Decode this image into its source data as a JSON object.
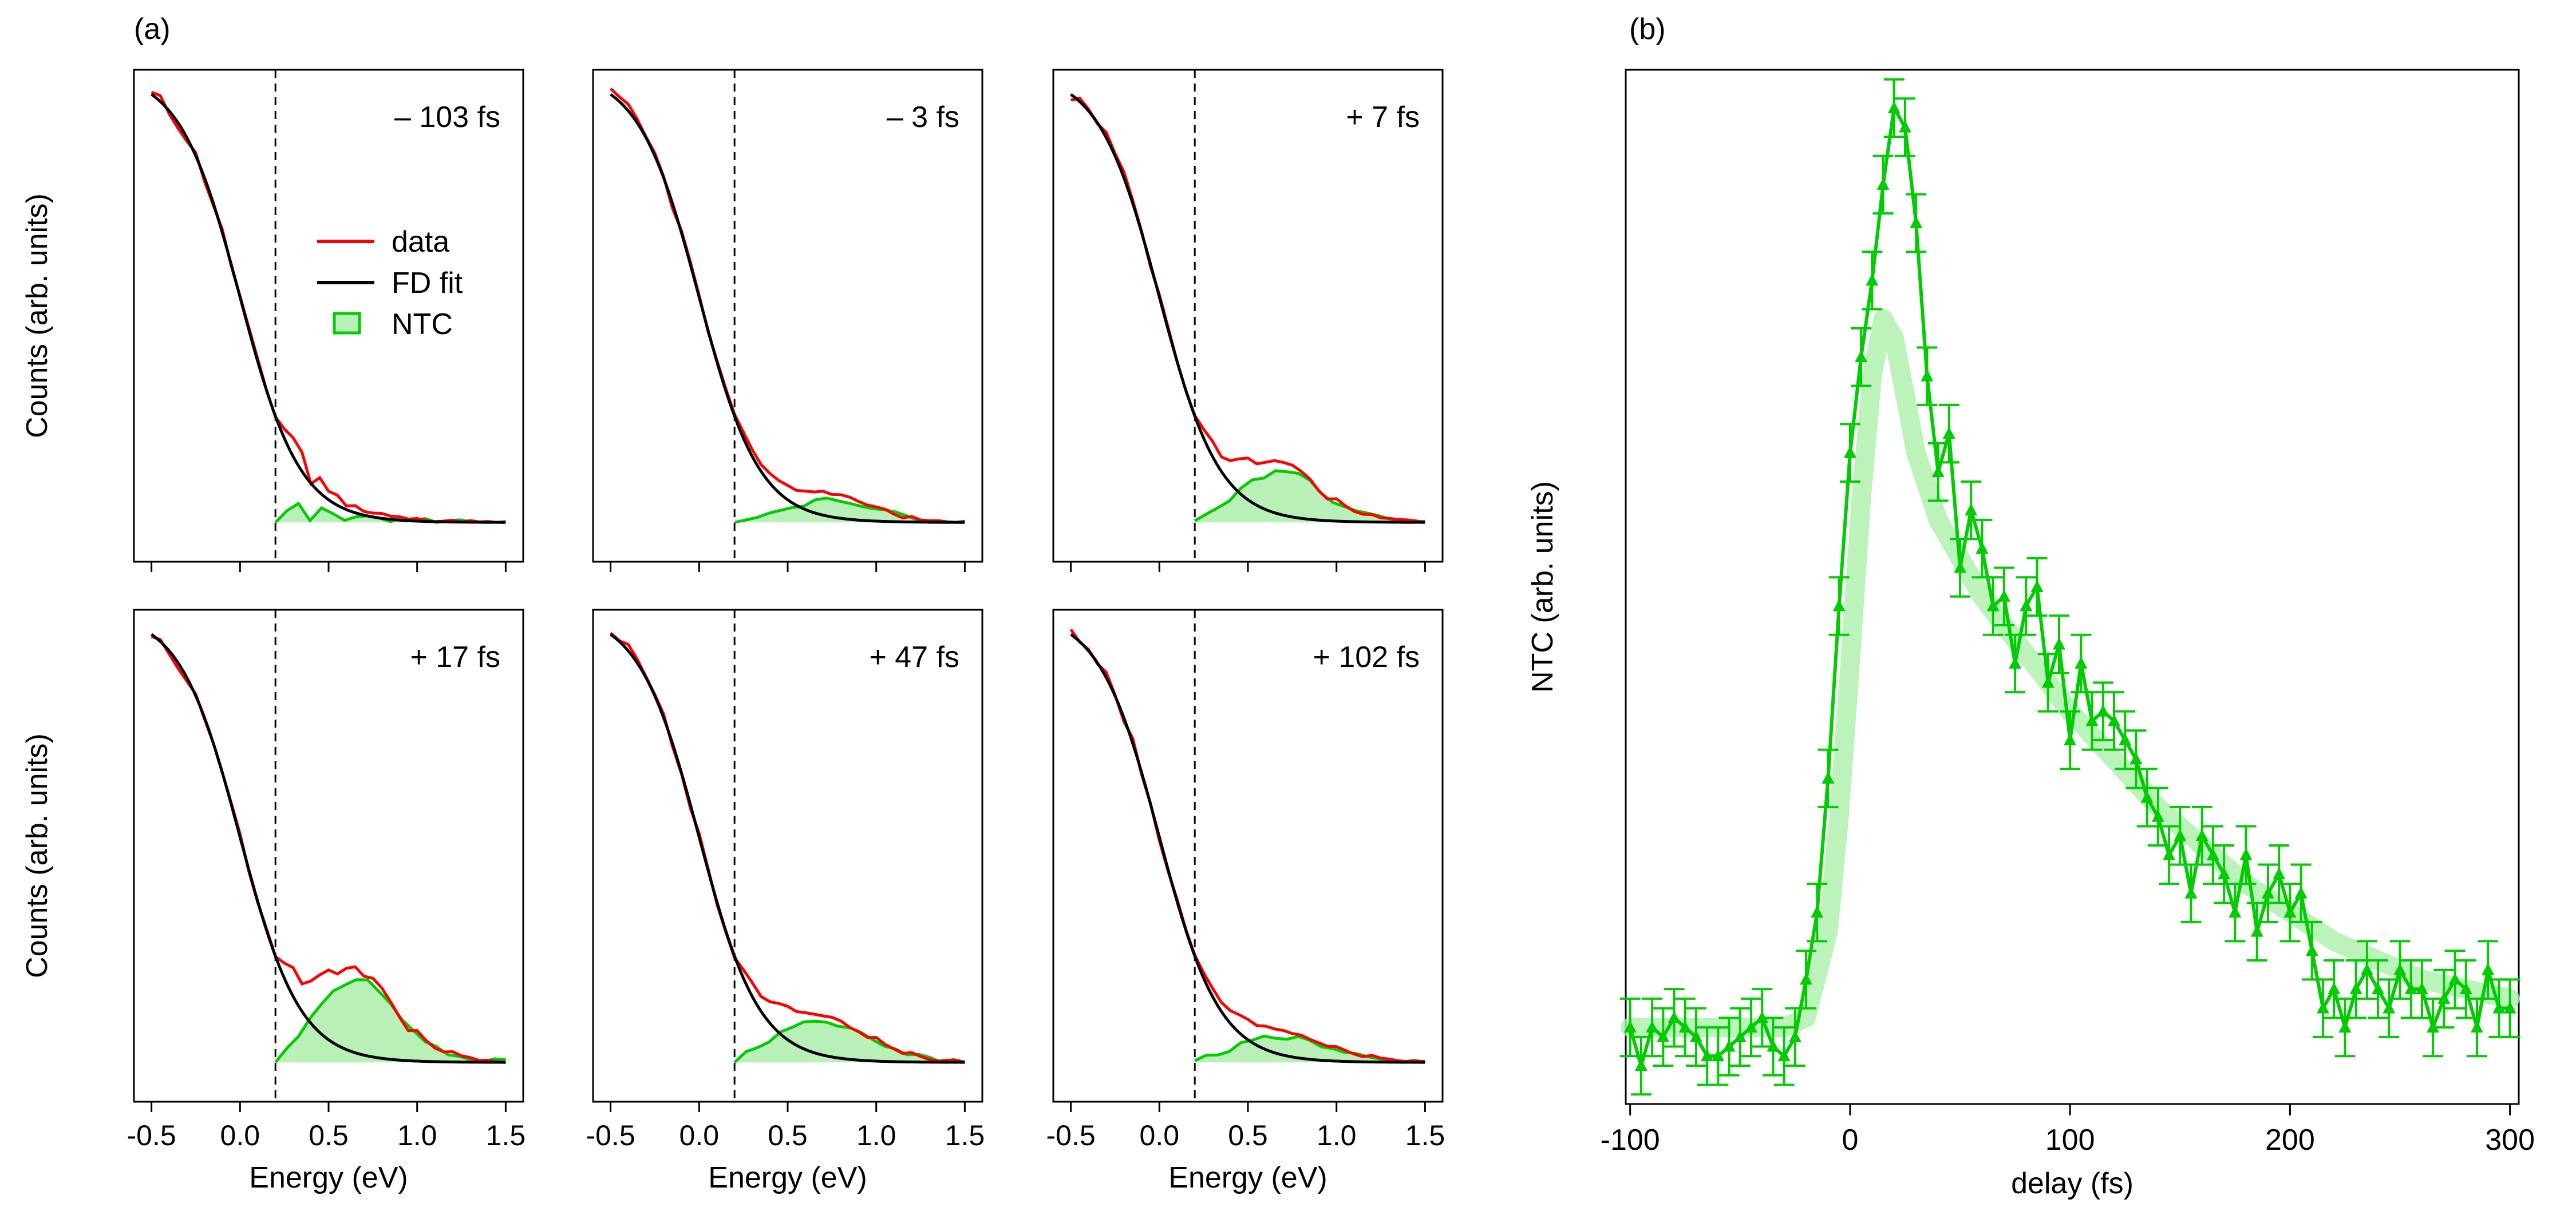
{
  "figure": {
    "panel_a_label": "(a)",
    "panel_b_label": "(b)"
  },
  "chart_data": [
    {
      "type": "line",
      "panel": "a",
      "title": "",
      "xlabel": "Energy (eV)",
      "ylabel": "Counts (arb. units)",
      "xlim": [
        -0.5,
        1.5
      ],
      "ylim": [
        0,
        1
      ],
      "xticks": [
        "-0.5",
        "0.0",
        "0.5",
        "1.0",
        "1.5"
      ],
      "fermi_marker_x": 0.2,
      "fd_kT": 0.17,
      "legend": [
        {
          "label": "data",
          "color": "#ff0000",
          "style": "line"
        },
        {
          "label": "FD fit",
          "color": "#000000",
          "style": "line"
        },
        {
          "label": "NTC",
          "color": "#00cc00",
          "style": "filled-box"
        }
      ],
      "x": [
        -0.5,
        -0.45,
        -0.4,
        -0.35,
        -0.3,
        -0.25,
        -0.2,
        -0.15,
        -0.1,
        -0.05,
        0.0,
        0.05,
        0.1,
        0.15,
        0.2,
        0.25,
        0.3,
        0.35,
        0.4,
        0.45,
        0.5,
        0.55,
        0.6,
        0.65,
        0.7,
        0.75,
        0.8,
        0.85,
        0.9,
        0.95,
        1.0,
        1.05,
        1.1,
        1.15,
        1.2,
        1.25,
        1.3,
        1.35,
        1.4,
        1.45,
        1.5
      ],
      "subplots": [
        {
          "delay_label": "– 103 fs",
          "excess": [
            0.0,
            0.01,
            0.02,
            0.0,
            0.015,
            0.01,
            0.005,
            0.008,
            0.004,
            0.005,
            0.003,
            0.003,
            0.002,
            0.002,
            0.001,
            0.001,
            0.001,
            0.001,
            0.0,
            0.0,
            0.0
          ]
        },
        {
          "delay_label": "– 3 fs",
          "excess": [
            0.0,
            0.005,
            0.008,
            0.01,
            0.012,
            0.016,
            0.02,
            0.022,
            0.025,
            0.025,
            0.023,
            0.02,
            0.016,
            0.012,
            0.008,
            0.005,
            0.003,
            0.002,
            0.001,
            0.001,
            0.0
          ]
        },
        {
          "delay_label": "+ 7 fs",
          "excess": [
            0.0,
            0.01,
            0.015,
            0.025,
            0.035,
            0.045,
            0.05,
            0.055,
            0.055,
            0.05,
            0.042,
            0.032,
            0.024,
            0.016,
            0.01,
            0.007,
            0.005,
            0.003,
            0.002,
            0.001,
            0.0
          ]
        },
        {
          "delay_label": "+ 17 fs",
          "excess": [
            0.0,
            0.015,
            0.03,
            0.045,
            0.06,
            0.075,
            0.085,
            0.09,
            0.085,
            0.075,
            0.06,
            0.045,
            0.032,
            0.022,
            0.015,
            0.01,
            0.007,
            0.005,
            0.003,
            0.001,
            0.0
          ]
        },
        {
          "delay_label": "+ 47 fs",
          "excess": [
            0.0,
            0.01,
            0.015,
            0.022,
            0.03,
            0.036,
            0.04,
            0.042,
            0.042,
            0.04,
            0.035,
            0.03,
            0.024,
            0.018,
            0.013,
            0.009,
            0.006,
            0.004,
            0.002,
            0.001,
            0.0
          ]
        },
        {
          "delay_label": "+ 102 fs",
          "excess": [
            0.0,
            0.005,
            0.01,
            0.014,
            0.018,
            0.022,
            0.025,
            0.026,
            0.026,
            0.025,
            0.022,
            0.019,
            0.016,
            0.012,
            0.009,
            0.006,
            0.004,
            0.003,
            0.002,
            0.001,
            0.0
          ]
        }
      ]
    },
    {
      "type": "line",
      "panel": "b",
      "title": "",
      "xlabel": "delay (fs)",
      "ylabel": "NTC (arb. units)",
      "xlim": [
        -102,
        304
      ],
      "ylim": [
        -0.08,
        1.0
      ],
      "xticks": [
        "-100",
        "0",
        "100",
        "200",
        "300"
      ],
      "series": [
        {
          "name": "NTC",
          "color": "#00cc00",
          "x": [
            -100,
            -95,
            -90,
            -85,
            -80,
            -75,
            -70,
            -65,
            -60,
            -55,
            -50,
            -45,
            -40,
            -35,
            -30,
            -25,
            -20,
            -15,
            -10,
            -5,
            0,
            5,
            10,
            15,
            20,
            25,
            30,
            35,
            40,
            45,
            50,
            55,
            60,
            65,
            70,
            75,
            80,
            85,
            90,
            95,
            100,
            105,
            110,
            115,
            120,
            125,
            130,
            135,
            140,
            145,
            150,
            155,
            160,
            165,
            170,
            175,
            180,
            185,
            190,
            195,
            200,
            205,
            210,
            215,
            220,
            225,
            230,
            235,
            240,
            245,
            250,
            255,
            260,
            265,
            270,
            275,
            280,
            285,
            290,
            295,
            300
          ],
          "values": [
            0.0,
            -0.04,
            0.0,
            -0.01,
            0.01,
            0.0,
            -0.01,
            -0.03,
            -0.03,
            -0.02,
            -0.01,
            0.0,
            0.01,
            -0.02,
            -0.03,
            -0.01,
            0.05,
            0.12,
            0.26,
            0.44,
            0.6,
            0.7,
            0.78,
            0.88,
            0.96,
            0.94,
            0.84,
            0.68,
            0.58,
            0.62,
            0.48,
            0.54,
            0.5,
            0.44,
            0.45,
            0.38,
            0.44,
            0.46,
            0.36,
            0.4,
            0.3,
            0.38,
            0.32,
            0.33,
            0.32,
            0.3,
            0.28,
            0.24,
            0.22,
            0.18,
            0.2,
            0.14,
            0.2,
            0.18,
            0.16,
            0.12,
            0.18,
            0.1,
            0.14,
            0.16,
            0.12,
            0.14,
            0.08,
            0.02,
            0.04,
            0.0,
            0.04,
            0.06,
            0.04,
            0.02,
            0.06,
            0.04,
            0.04,
            0.0,
            0.03,
            0.05,
            0.04,
            0.0,
            0.06,
            0.02,
            0.02
          ],
          "error": 0.03
        },
        {
          "name": "fit",
          "color": "#aaf0aa",
          "x": [
            -100,
            -50,
            -30,
            -20,
            -10,
            -5,
            0,
            5,
            10,
            15,
            20,
            25,
            30,
            40,
            50,
            60,
            70,
            80,
            90,
            100,
            120,
            140,
            160,
            180,
            200,
            220,
            240,
            260,
            280,
            300
          ],
          "values": [
            0.0,
            0.0,
            0.0,
            0.01,
            0.1,
            0.22,
            0.38,
            0.55,
            0.68,
            0.74,
            0.72,
            0.66,
            0.6,
            0.53,
            0.49,
            0.45,
            0.42,
            0.39,
            0.36,
            0.33,
            0.28,
            0.23,
            0.19,
            0.15,
            0.12,
            0.09,
            0.07,
            0.05,
            0.04,
            0.03
          ]
        }
      ]
    }
  ]
}
